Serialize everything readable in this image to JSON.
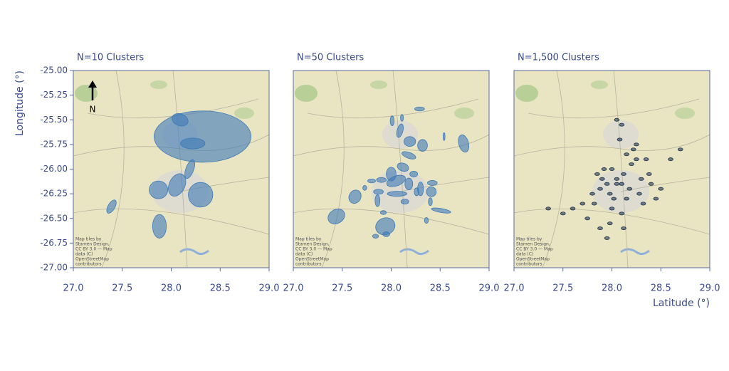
{
  "chart_data": [
    {
      "type": "ellipse",
      "title": "N=10 Clusters",
      "ylabel": "Longitude (°)",
      "north_label": "N",
      "attribution": [
        "Map tiles by",
        "Stamen Design,",
        "CC BY 3.0 — Map",
        "data (C)",
        "OpenStreetMap",
        "contributors"
      ],
      "color": "#3d7ab8",
      "xlim": [
        27,
        29
      ],
      "ylim": [
        -27,
        -25
      ],
      "xticks": [
        {
          "value": 27,
          "label": "27.0"
        },
        27.5,
        {
          "value": 28,
          "label": "28.0"
        },
        28.5,
        {
          "value": 29,
          "label": "29.0"
        }
      ],
      "yticks": [
        {
          "value": -25,
          "label": "-25.00"
        },
        -25.25,
        {
          "value": -25.5,
          "label": "-25.50"
        },
        -25.75,
        {
          "value": -26,
          "label": "-26.00"
        },
        -26.25,
        {
          "value": -26.5,
          "label": "-26.50"
        },
        -26.75,
        {
          "value": -27,
          "label": "-27.00"
        }
      ],
      "ellipses": {
        "x": [
          28.32,
          28.09,
          28.22,
          28.19,
          28.06,
          27.87,
          28.3,
          27.39,
          27.88
        ],
        "y": [
          -25.67,
          -25.5,
          -25.74,
          -26.0,
          -26.16,
          -26.21,
          -26.26,
          -26.38,
          -26.58
        ],
        "w": [
          0.99,
          0.17,
          0.25,
          0.08,
          0.16,
          0.19,
          0.25,
          0.07,
          0.14
        ],
        "h": [
          0.52,
          0.12,
          0.11,
          0.2,
          0.24,
          0.18,
          0.25,
          0.15,
          0.24
        ],
        "angle": [
          0,
          -20,
          0,
          -20,
          -25,
          0,
          0,
          -30,
          0
        ]
      }
    },
    {
      "type": "ellipse",
      "title": "N=50 Clusters",
      "attribution": [
        "Map tiles by",
        "Stamen Design,",
        "CC BY 3.0 — Map",
        "data (C)",
        "OpenStreetMap",
        "contributors"
      ],
      "color": "#3d7ab8",
      "xlim": [
        27,
        29
      ],
      "ylim": [
        -27,
        -25
      ],
      "xticks": [
        {
          "value": 27,
          "label": "27.0"
        },
        27.5,
        {
          "value": 28,
          "label": "28.0"
        },
        28.5,
        {
          "value": 29,
          "label": "29.0"
        }
      ],
      "ellipses": {
        "x": [
          28.01,
          28.11,
          28.29,
          28.09,
          28.19,
          28.32,
          28.54,
          28.74,
          28.18,
          28.12,
          28.23,
          28.0,
          27.9,
          27.8,
          28.05,
          28.18,
          28.3,
          28.42,
          28.41,
          27.87,
          28.06,
          28.26,
          27.63,
          27.86,
          27.73,
          28.14,
          28.4,
          27.44,
          27.94,
          27.95,
          27.84,
          28.36,
          28.51,
          27.92
        ],
        "y": [
          -25.51,
          -25.48,
          -25.39,
          -25.61,
          -25.72,
          -25.76,
          -25.67,
          -25.74,
          -25.86,
          -25.98,
          -26.05,
          -26.05,
          -26.11,
          -26.12,
          -26.12,
          -26.15,
          -26.2,
          -26.14,
          -26.23,
          -26.23,
          -26.25,
          -26.23,
          -26.28,
          -26.32,
          -26.19,
          -26.33,
          -26.33,
          -26.48,
          -26.58,
          -26.66,
          -26.68,
          -26.52,
          -26.42,
          -26.44
        ],
        "w": [
          0.04,
          0.03,
          0.1,
          0.06,
          0.12,
          0.1,
          0.02,
          0.1,
          0.15,
          0.12,
          0.08,
          0.1,
          0.1,
          0.08,
          0.2,
          0.08,
          0.06,
          0.1,
          0.1,
          0.1,
          0.2,
          0.05,
          0.12,
          0.05,
          0.04,
          0.08,
          0.04,
          0.18,
          0.2,
          0.07,
          0.06,
          0.04,
          0.2,
          0.06
        ],
        "h": [
          0.1,
          0.07,
          0.04,
          0.14,
          0.1,
          0.12,
          0.08,
          0.18,
          0.06,
          0.08,
          0.06,
          0.14,
          0.05,
          0.04,
          0.1,
          0.12,
          0.14,
          0.05,
          0.1,
          0.05,
          0.05,
          0.08,
          0.14,
          0.12,
          0.05,
          0.05,
          0.08,
          0.14,
          0.17,
          0.05,
          0.04,
          0.06,
          0.04,
          0.04
        ],
        "angle": [
          0,
          0,
          0,
          -15,
          0,
          0,
          0,
          15,
          -20,
          -20,
          0,
          0,
          0,
          0,
          20,
          0,
          0,
          0,
          0,
          0,
          0,
          0,
          -30,
          0,
          0,
          0,
          0,
          30,
          20,
          0,
          0,
          0,
          -10,
          0
        ]
      }
    },
    {
      "type": "ellipse",
      "title": "N=1,500 Clusters",
      "xlabel": "Latitude (°)",
      "attribution": [
        "Map tiles by",
        "Stamen Design,",
        "CC BY 3.0 — Map",
        "data (C)",
        "OpenStreetMap",
        "contributors"
      ],
      "color": "#1f3550",
      "xlim": [
        27,
        29
      ],
      "ylim": [
        -27,
        -25
      ],
      "xticks": [
        {
          "value": 27,
          "label": "27.0"
        },
        27.5,
        {
          "value": 28,
          "label": "28.0"
        },
        28.5,
        {
          "value": 29,
          "label": "29.0"
        }
      ],
      "ellipses": {
        "x": [
          28.05,
          27.95,
          28.12,
          28.2,
          27.88,
          28.3,
          28.02,
          27.92,
          28.15,
          28.25,
          27.8,
          28.4,
          28.1,
          27.98,
          28.35,
          27.7,
          28.45,
          28.08,
          27.85,
          28.18,
          28.0,
          27.6,
          28.22,
          27.9,
          28.28,
          27.75,
          28.5,
          28.05,
          28.12,
          27.95,
          27.35,
          27.5,
          28.6,
          28.7,
          28.1,
          28.0,
          27.82,
          28.38,
          28.15,
          27.98,
          28.25,
          28.05,
          28.32,
          27.88,
          28.1
        ],
        "y": [
          -26.1,
          -26.15,
          -26.05,
          -25.95,
          -26.2,
          -26.1,
          -26.3,
          -26.0,
          -25.85,
          -25.75,
          -26.25,
          -26.15,
          -26.45,
          -26.55,
          -25.9,
          -26.35,
          -26.3,
          -25.7,
          -26.05,
          -26.2,
          -26.4,
          -26.4,
          -25.8,
          -26.1,
          -26.25,
          -26.5,
          -26.2,
          -25.5,
          -26.6,
          -26.7,
          -26.4,
          -26.45,
          -25.9,
          -25.8,
          -26.15,
          -26.0,
          -26.35,
          -26.05,
          -26.3,
          -26.25,
          -25.9,
          -26.15,
          -26.35,
          -26.6,
          -25.55
        ],
        "w": [
          0.05,
          0.05,
          0.05,
          0.05,
          0.05,
          0.05,
          0.05,
          0.05,
          0.05,
          0.05,
          0.05,
          0.05,
          0.05,
          0.05,
          0.05,
          0.05,
          0.05,
          0.05,
          0.05,
          0.05,
          0.05,
          0.05,
          0.05,
          0.05,
          0.05,
          0.05,
          0.05,
          0.05,
          0.05,
          0.05,
          0.05,
          0.05,
          0.05,
          0.05,
          0.05,
          0.05,
          0.05,
          0.05,
          0.05,
          0.05,
          0.05,
          0.05,
          0.05,
          0.05,
          0.05
        ],
        "h": [
          0.03,
          0.03,
          0.03,
          0.03,
          0.03,
          0.03,
          0.03,
          0.03,
          0.03,
          0.03,
          0.03,
          0.03,
          0.03,
          0.03,
          0.03,
          0.03,
          0.03,
          0.03,
          0.03,
          0.03,
          0.03,
          0.03,
          0.03,
          0.03,
          0.03,
          0.03,
          0.03,
          0.03,
          0.03,
          0.03,
          0.03,
          0.03,
          0.03,
          0.03,
          0.03,
          0.03,
          0.03,
          0.03,
          0.03,
          0.03,
          0.03,
          0.03,
          0.03,
          0.03,
          0.03
        ]
      }
    }
  ]
}
